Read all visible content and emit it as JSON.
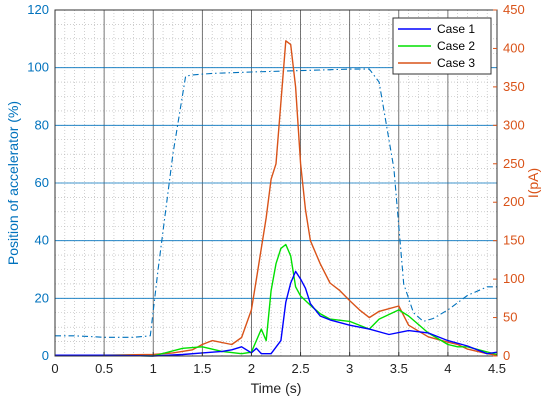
{
  "chart_data": {
    "type": "line",
    "title": "",
    "xlabel": "Time (s)",
    "ylabel_left": "Position of accelerator (%)",
    "ylabel_right": "I(pA)",
    "xlim": [
      0,
      4.5
    ],
    "ylim_left": [
      0,
      120
    ],
    "ylim_right": [
      0,
      450
    ],
    "x_ticks": [
      0,
      0.5,
      1,
      1.5,
      2,
      2.5,
      3,
      3.5,
      4,
      4.5
    ],
    "x_tick_labels": [
      "0",
      "0.5",
      "1",
      "1.5",
      "2",
      "2.5",
      "3",
      "3.5",
      "4",
      "4.5"
    ],
    "y_left_ticks": [
      0,
      20,
      40,
      60,
      80,
      100,
      120
    ],
    "y_right_ticks": [
      0,
      50,
      100,
      150,
      200,
      250,
      300,
      350,
      400,
      450
    ],
    "grid": true,
    "legend_position": "top-right",
    "colors": {
      "left_axis": "#0072BD",
      "right_axis": "#D95319",
      "case1": "#0000FF",
      "case2": "#00E000",
      "case3": "#D95319",
      "accelerator": "#0072BD"
    },
    "accelerator_position": {
      "style": "dash-dot",
      "axis": "left",
      "x": [
        0,
        0.2,
        0.5,
        0.8,
        0.97,
        1.05,
        1.2,
        1.33,
        1.4,
        1.6,
        2.0,
        2.5,
        3.0,
        3.2,
        3.3,
        3.45,
        3.55,
        3.65,
        3.75,
        3.85,
        4.0,
        4.2,
        4.4,
        4.5
      ],
      "y": [
        7,
        7,
        6.5,
        6.5,
        7,
        30,
        70,
        97,
        97.5,
        98,
        98.5,
        99,
        99.5,
        99.5,
        95,
        65,
        25,
        15,
        12,
        13,
        16,
        21,
        24,
        24
      ]
    },
    "series": [
      {
        "name": "Case 1",
        "axis": "right",
        "x": [
          0,
          0.5,
          1.0,
          1.3,
          1.5,
          1.7,
          1.8,
          1.9,
          2.0,
          2.05,
          2.1,
          2.2,
          2.3,
          2.35,
          2.4,
          2.45,
          2.5,
          2.55,
          2.6,
          2.7,
          2.8,
          3.0,
          3.2,
          3.4,
          3.6,
          3.8,
          4.0,
          4.2,
          4.4,
          4.5
        ],
        "y": [
          1,
          1,
          0,
          2,
          4,
          6,
          8,
          12,
          4,
          10,
          3,
          3,
          20,
          70,
          95,
          110,
          100,
          88,
          68,
          52,
          47,
          40,
          35,
          28,
          33,
          30,
          20,
          13,
          3,
          5
        ]
      },
      {
        "name": "Case 2",
        "axis": "right",
        "x": [
          0,
          0.5,
          1.0,
          1.3,
          1.5,
          1.7,
          1.9,
          2.0,
          2.1,
          2.15,
          2.2,
          2.25,
          2.3,
          2.35,
          2.4,
          2.45,
          2.5,
          2.6,
          2.7,
          2.8,
          3.0,
          3.2,
          3.3,
          3.5,
          3.6,
          3.8,
          4.0,
          4.1,
          4.2,
          4.5
        ],
        "y": [
          1,
          1,
          0,
          10,
          12,
          6,
          3,
          5,
          35,
          20,
          85,
          120,
          140,
          145,
          130,
          90,
          78,
          66,
          55,
          48,
          45,
          35,
          48,
          60,
          52,
          30,
          15,
          12,
          12,
          2
        ]
      },
      {
        "name": "Case 3",
        "axis": "right",
        "x": [
          0,
          0.5,
          1.0,
          1.2,
          1.4,
          1.5,
          1.6,
          1.8,
          1.9,
          2.0,
          2.05,
          2.1,
          2.15,
          2.2,
          2.25,
          2.3,
          2.35,
          2.4,
          2.45,
          2.5,
          2.55,
          2.6,
          2.7,
          2.8,
          2.9,
          3.0,
          3.1,
          3.2,
          3.3,
          3.5,
          3.6,
          3.8,
          4.0,
          4.1,
          4.2,
          4.4,
          4.5
        ],
        "y": [
          1,
          1,
          2,
          4,
          8,
          15,
          20,
          15,
          24,
          60,
          100,
          140,
          180,
          230,
          250,
          330,
          410,
          405,
          350,
          250,
          190,
          150,
          120,
          95,
          85,
          72,
          60,
          50,
          58,
          65,
          40,
          25,
          18,
          15,
          9,
          3,
          1
        ]
      }
    ]
  }
}
